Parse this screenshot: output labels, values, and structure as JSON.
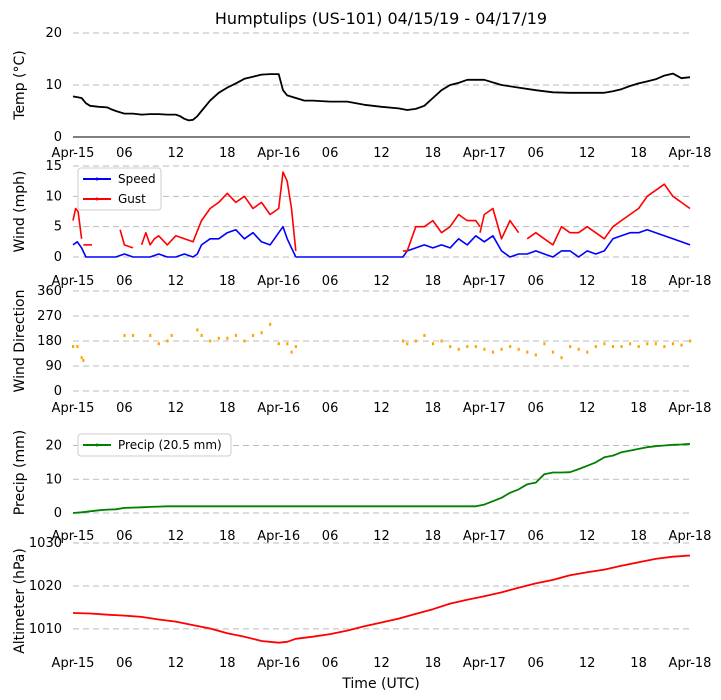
{
  "chart_data": {
    "title": "Humptulips (US-101) 04/15/19 - 04/17/19",
    "xlabel": "Time (UTC)",
    "x_tick_labels": [
      "Apr-15",
      "06",
      "12",
      "18",
      "Apr-16",
      "06",
      "12",
      "18",
      "Apr-17",
      "06",
      "12",
      "18",
      "Apr-18"
    ],
    "x_unit": "hours since Apr-15 00:00 UTC",
    "x_range": [
      0,
      72
    ],
    "colors": {
      "temp": "#000000",
      "speed": "#0000ff",
      "gust": "#ff0000",
      "direction": "#ffa500",
      "precip": "#008000",
      "altimeter": "#ff0000",
      "grid": "#bbbbbb"
    },
    "panels": [
      {
        "id": "temp",
        "type": "line",
        "ylabel": "Temp ($^\\circ$C)",
        "ylabel_display": "Temp (°C)",
        "ylim": [
          0,
          20
        ],
        "yticks": [
          0,
          10,
          20
        ],
        "series": [
          {
            "name": "Temp",
            "color": "#000000",
            "x": [
              0,
              1,
              1.5,
              2,
              3,
              4,
              4.5,
              5,
              6,
              7,
              8,
              9,
              10,
              11,
              12,
              12.5,
              13,
              13.5,
              14,
              14.5,
              15,
              15.5,
              16,
              17,
              18,
              19,
              20,
              21,
              22,
              23,
              24,
              24.5,
              25,
              26,
              27,
              28,
              30,
              32,
              34,
              36,
              38,
              39,
              40,
              41,
              42,
              43,
              44,
              45,
              46,
              48,
              50,
              52,
              54,
              56,
              58,
              60,
              62,
              63,
              64,
              65,
              66,
              67,
              68,
              69,
              70,
              71,
              72
            ],
            "y": [
              7.8,
              7.5,
              6.5,
              6,
              5.8,
              5.7,
              5.3,
              5,
              4.5,
              4.5,
              4.3,
              4.4,
              4.4,
              4.3,
              4.3,
              4,
              3.5,
              3.2,
              3.3,
              4,
              5,
              6,
              7,
              8.5,
              9.5,
              10.3,
              11.2,
              11.6,
              12,
              12.1,
              12.1,
              9,
              8,
              7.5,
              7,
              7,
              6.8,
              6.8,
              6.2,
              5.8,
              5.5,
              5.2,
              5.4,
              6,
              7.5,
              9,
              10,
              10.4,
              11,
              11,
              10,
              9.5,
              9,
              8.6,
              8.5,
              8.5,
              8.5,
              8.8,
              9.2,
              9.8,
              10.3,
              10.7,
              11.1,
              11.8,
              12.2,
              11.3,
              11.5
            ]
          }
        ]
      },
      {
        "id": "wind",
        "type": "line",
        "ylabel": "Wind (mph)",
        "ylim": [
          0,
          15
        ],
        "yticks": [
          0,
          5,
          10,
          15
        ],
        "legend": {
          "position": "upper-left",
          "entries": [
            "Speed",
            "Gust"
          ]
        },
        "series": [
          {
            "name": "Speed",
            "color": "#0000ff",
            "segments": [
              {
                "x": [
                  0,
                  0.5,
                  1,
                  1.5,
                  2,
                  3,
                  4,
                  5,
                  6,
                  7,
                  8,
                  9,
                  10,
                  11,
                  12,
                  13,
                  14,
                  14.5,
                  15,
                  16,
                  17,
                  18,
                  19,
                  20,
                  21,
                  22,
                  23,
                  24,
                  24.5,
                  25,
                  26
                ],
                "y": [
                  2,
                  2.5,
                  1.5,
                  0,
                  0,
                  0,
                  0,
                  0,
                  0.5,
                  0,
                  0,
                  0,
                  0.5,
                  0,
                  0,
                  0.5,
                  0,
                  0.5,
                  2,
                  3,
                  3,
                  4,
                  4.5,
                  3,
                  4,
                  2.5,
                  2,
                  4,
                  5,
                  3,
                  0
                ]
              },
              {
                "x": [
                  26,
                  30,
                  35,
                  38.5,
                  39,
                  40,
                  41,
                  42,
                  43,
                  44,
                  45,
                  46,
                  47,
                  48,
                  49,
                  50,
                  51,
                  52,
                  53,
                  54,
                  55,
                  56,
                  57,
                  58,
                  59,
                  60,
                  61,
                  62,
                  63,
                  64,
                  65,
                  66,
                  67,
                  68,
                  69,
                  70,
                  71,
                  72
                ],
                "y": [
                  0,
                  0,
                  0,
                  0,
                  1,
                  1.5,
                  2,
                  1.5,
                  2,
                  1.5,
                  3,
                  2,
                  3.5,
                  2.5,
                  3.5,
                  1,
                  0,
                  0.5,
                  0.5,
                  1,
                  0.5,
                  0,
                  1,
                  1,
                  0,
                  1,
                  0.5,
                  1,
                  3,
                  3.5,
                  4,
                  4,
                  4.5,
                  4,
                  3.5,
                  3,
                  2.5,
                  2
                ]
              }
            ]
          },
          {
            "name": "Gust",
            "color": "#ff0000",
            "segments": [
              {
                "x": [
                  0,
                  0.3,
                  0.6,
                  1
                ],
                "y": [
                  6,
                  8,
                  7.5,
                  3
                ]
              },
              {
                "x": [
                  1.2,
                  2.2
                ],
                "y": [
                  2,
                  2
                ]
              },
              {
                "x": [
                  5.5,
                  6,
                  7
                ],
                "y": [
                  4.5,
                  2,
                  1.5
                ]
              },
              {
                "x": [
                  8,
                  8.5,
                  9,
                  9.5,
                  10,
                  11,
                  12,
                  13,
                  14,
                  15,
                  16,
                  17,
                  18,
                  19,
                  20,
                  21,
                  22,
                  23,
                  24,
                  24.5,
                  25,
                  25.5,
                  26
                ],
                "y": [
                  2,
                  4,
                  2,
                  3,
                  3.5,
                  2,
                  3.5,
                  3,
                  2.5,
                  6,
                  8,
                  9,
                  10.5,
                  9,
                  10,
                  8,
                  9,
                  7,
                  8,
                  14,
                  12.5,
                  8,
                  1
                ]
              }
            ]
          },
          {
            "x_unused": true
          },
          {
            "name": "Gust-b",
            "color": "#ff0000",
            "segments": [
              {
                "x": [
                  38.5,
                  39,
                  40,
                  41,
                  42,
                  43,
                  44,
                  45,
                  46,
                  47,
                  47.5
                ],
                "y": [
                  1,
                  1,
                  5,
                  5,
                  6,
                  4,
                  5,
                  7,
                  6,
                  6,
                  5
                ]
              },
              {
                "x": [
                  47.5,
                  48,
                  49,
                  50,
                  51,
                  52
                ],
                "y": [
                  4,
                  7,
                  8,
                  3,
                  6,
                  4
                ]
              },
              {
                "x": [
                  53,
                  54,
                  55,
                  56,
                  57,
                  58,
                  59,
                  60,
                  61,
                  62,
                  63,
                  64,
                  65,
                  66,
                  67,
                  68,
                  69,
                  70,
                  71,
                  72
                ],
                "y": [
                  3,
                  4,
                  3,
                  2,
                  5,
                  4,
                  4,
                  5,
                  4,
                  3,
                  5,
                  6,
                  7,
                  8,
                  10,
                  11,
                  12,
                  10,
                  9,
                  8
                ]
              }
            ]
          }
        ]
      },
      {
        "id": "direction",
        "type": "scatter",
        "ylabel": "Wind Direction",
        "ylim": [
          0,
          360
        ],
        "yticks": [
          0,
          90,
          180,
          270,
          360
        ],
        "series": [
          {
            "name": "Direction",
            "color": "#ffa500",
            "x": [
              0,
              0.5,
              1,
              1.2,
              6,
              7,
              9,
              10,
              11,
              11.5,
              14.5,
              15,
              16,
              17,
              18,
              19,
              20,
              21,
              22,
              23,
              24,
              25,
              25.5,
              26,
              38.5,
              39,
              40,
              41,
              42,
              43,
              44,
              45,
              46,
              47,
              48,
              49,
              50,
              51,
              52,
              53,
              54,
              55,
              56,
              57,
              58,
              59,
              60,
              61,
              62,
              63,
              64,
              65,
              66,
              67,
              68,
              69,
              70,
              71,
              72
            ],
            "y": [
              160,
              160,
              120,
              110,
              200,
              200,
              200,
              170,
              180,
              200,
              220,
              200,
              180,
              190,
              190,
              200,
              180,
              200,
              210,
              240,
              170,
              170,
              140,
              160,
              180,
              170,
              180,
              200,
              170,
              180,
              160,
              150,
              160,
              160,
              150,
              140,
              150,
              160,
              150,
              140,
              130,
              170,
              140,
              120,
              160,
              150,
              140,
              160,
              170,
              160,
              160,
              170,
              160,
              170,
              170,
              160,
              170,
              165,
              180
            ]
          }
        ]
      },
      {
        "id": "precip",
        "type": "line",
        "ylabel": "Precip (mm)",
        "ylim": [
          0,
          24
        ],
        "yticks": [
          0,
          10,
          20
        ],
        "legend": {
          "position": "upper-left",
          "entries": [
            "Precip (20.5 mm)"
          ]
        },
        "series": [
          {
            "name": "Precip (20.5 mm)",
            "color": "#008000",
            "x": [
              0,
              1,
              2,
              3,
              4,
              5,
              6,
              7,
              8,
              9,
              10,
              11,
              12,
              13,
              24,
              36,
              47,
              48,
              49,
              50,
              51,
              52,
              53,
              54,
              55,
              56,
              57,
              58,
              59,
              60,
              61,
              62,
              63,
              64,
              65,
              66,
              67,
              68,
              69,
              70,
              71,
              72
            ],
            "y": [
              0,
              0.2,
              0.5,
              0.8,
              1,
              1.1,
              1.5,
              1.6,
              1.7,
              1.8,
              1.9,
              2,
              2,
              2,
              2,
              2,
              2,
              2.5,
              3.5,
              4.5,
              6,
              7,
              8.5,
              9,
              11.5,
              12,
              12,
              12.1,
              13,
              14,
              15,
              16.5,
              17,
              18,
              18.5,
              19,
              19.5,
              19.8,
              20,
              20.2,
              20.3,
              20.5
            ]
          }
        ]
      },
      {
        "id": "altimeter",
        "type": "line",
        "ylabel": "Altimeter (hPa)",
        "ylim": [
          1003,
          1030
        ],
        "yticks": [
          1010,
          1020,
          1030
        ],
        "series": [
          {
            "name": "Altimeter",
            "color": "#ff0000",
            "x": [
              0,
              2,
              4,
              6,
              8,
              10,
              12,
              14,
              16,
              18,
              20,
              22,
              24,
              25,
              26,
              28,
              30,
              32,
              34,
              36,
              38,
              40,
              42,
              44,
              46,
              48,
              50,
              52,
              54,
              56,
              58,
              60,
              62,
              64,
              66,
              68,
              70,
              72
            ],
            "y": [
              1013.7,
              1013.6,
              1013.3,
              1013.1,
              1012.8,
              1012.2,
              1011.7,
              1010.9,
              1010.1,
              1009,
              1008.2,
              1007.2,
              1006.8,
              1007,
              1007.7,
              1008.2,
              1008.8,
              1009.6,
              1010.6,
              1011.5,
              1012.4,
              1013.5,
              1014.6,
              1015.9,
              1016.8,
              1017.6,
              1018.5,
              1019.6,
              1020.6,
              1021.4,
              1022.5,
              1023.2,
              1023.8,
              1024.7,
              1025.5,
              1026.3,
              1026.8,
              1027.1
            ]
          }
        ]
      }
    ]
  }
}
